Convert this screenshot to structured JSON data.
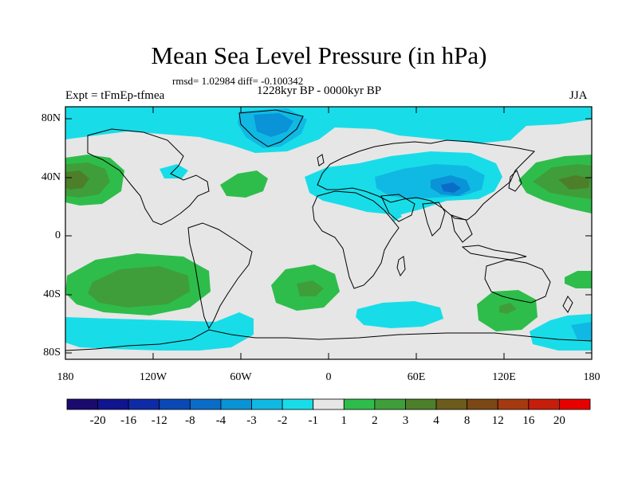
{
  "title": "Mean Sea Level Pressure (in hPa)",
  "stats": "rmsd= 1.02984 diff= -0.100342",
  "period": "1228kyr BP - 0000kyr BP",
  "experiment": "Expt = tFmEp-tfmea",
  "season": "JJA",
  "axes": {
    "lat_labels": [
      "80N",
      "40N",
      "0",
      "40S",
      "80S"
    ],
    "lon_labels": [
      "180",
      "120W",
      "60W",
      "0",
      "60E",
      "120E",
      "180"
    ]
  },
  "colorbar": {
    "labels": [
      "-20",
      "-16",
      "-12",
      "-8",
      "-4",
      "-3",
      "-2",
      "-1",
      "1",
      "2",
      "3",
      "4",
      "8",
      "12",
      "16",
      "20"
    ],
    "colors": [
      "#1b0a6e",
      "#10148f",
      "#0e2aa6",
      "#0a49b5",
      "#0a6cc8",
      "#0a93d6",
      "#10b9e3",
      "#18dde8",
      "#e6e6e6",
      "#2ebd4b",
      "#3f9e3a",
      "#4d7f2a",
      "#6b5c1c",
      "#7a4715",
      "#a53a10",
      "#c71d0b",
      "#e60000"
    ]
  },
  "colors": {
    "neutral": "#e6e6e6",
    "neg1": "#18dde8",
    "neg2": "#10b9e3",
    "neg3": "#0a93d6",
    "neg4": "#0a6cc8",
    "pos1": "#2ebd4b",
    "pos2": "#3f9e3a",
    "pos3": "#4d7f2a",
    "pos4": "#6b5c1c"
  }
}
